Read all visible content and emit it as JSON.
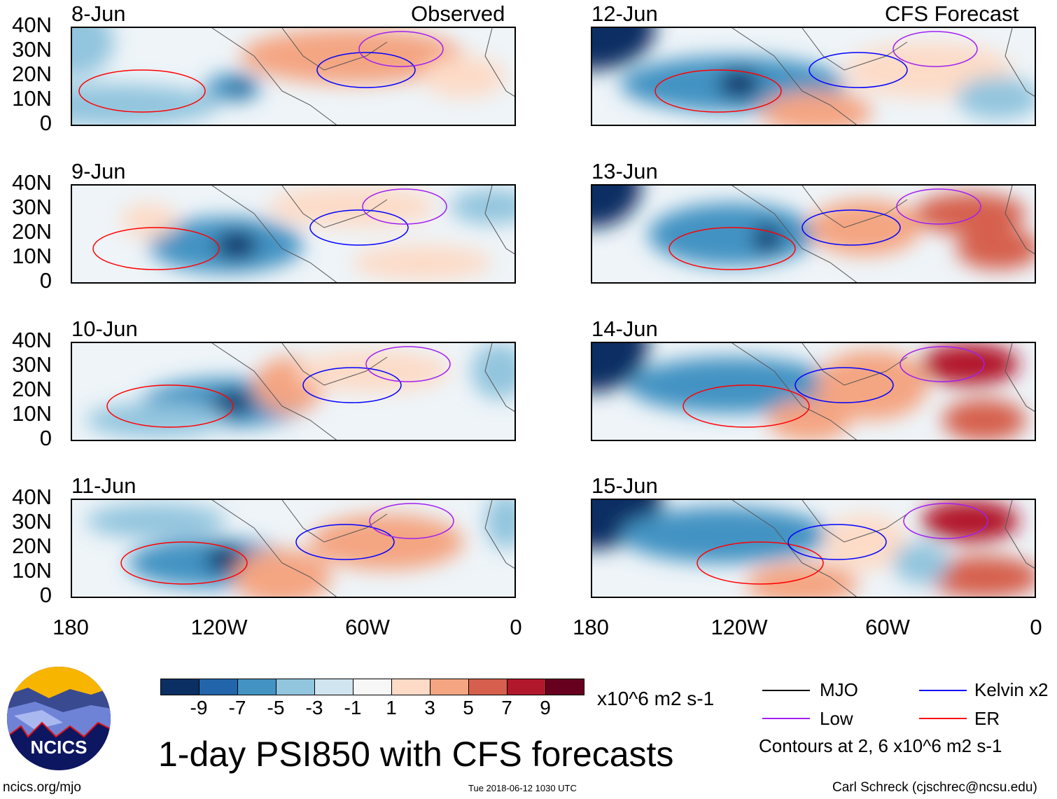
{
  "headers": {
    "observed": "Observed",
    "forecast": "CFS Forecast"
  },
  "panels": [
    {
      "date": "8-Jun",
      "column": "observed"
    },
    {
      "date": "9-Jun",
      "column": "observed"
    },
    {
      "date": "10-Jun",
      "column": "observed"
    },
    {
      "date": "11-Jun",
      "column": "observed"
    },
    {
      "date": "12-Jun",
      "column": "forecast"
    },
    {
      "date": "13-Jun",
      "column": "forecast"
    },
    {
      "date": "14-Jun",
      "column": "forecast"
    },
    {
      "date": "15-Jun",
      "column": "forecast"
    }
  ],
  "chart_data": {
    "type": "heatmap",
    "title": "1-day PSI850 with CFS forecasts",
    "y_ticks": [
      "40N",
      "30N",
      "20N",
      "10N",
      "0"
    ],
    "x_ticks": [
      "180",
      "120W",
      "60W",
      "0"
    ],
    "colorbar": {
      "unit": "x10^6 m2 s-1",
      "ticks": [
        "-9",
        "-7",
        "-5",
        "-3",
        "-1",
        "1",
        "3",
        "5",
        "7",
        "9"
      ],
      "colors": [
        "#0b2f63",
        "#2265ab",
        "#4393c3",
        "#92c5de",
        "#d1e5f0",
        "#f7f7f7",
        "#fddbc7",
        "#f4a582",
        "#d6604d",
        "#b2182b",
        "#67001f"
      ]
    },
    "legend": [
      {
        "label": "MJO",
        "color": "#000000"
      },
      {
        "label": "Kelvin x2",
        "color": "#0000ff"
      },
      {
        "label": "Low",
        "color": "#a020f0"
      },
      {
        "label": "ER",
        "color": "#ff0000"
      }
    ],
    "contour_note": "Contours at 2, 6 x10^6 m2 s-1"
  },
  "footer": {
    "url": "ncics.org/mjo",
    "timestamp": "Tue 2018-06-12 1030 UTC",
    "credit": "Carl Schreck (cjschrec@ncsu.edu)",
    "logo_text": "NCICS"
  }
}
